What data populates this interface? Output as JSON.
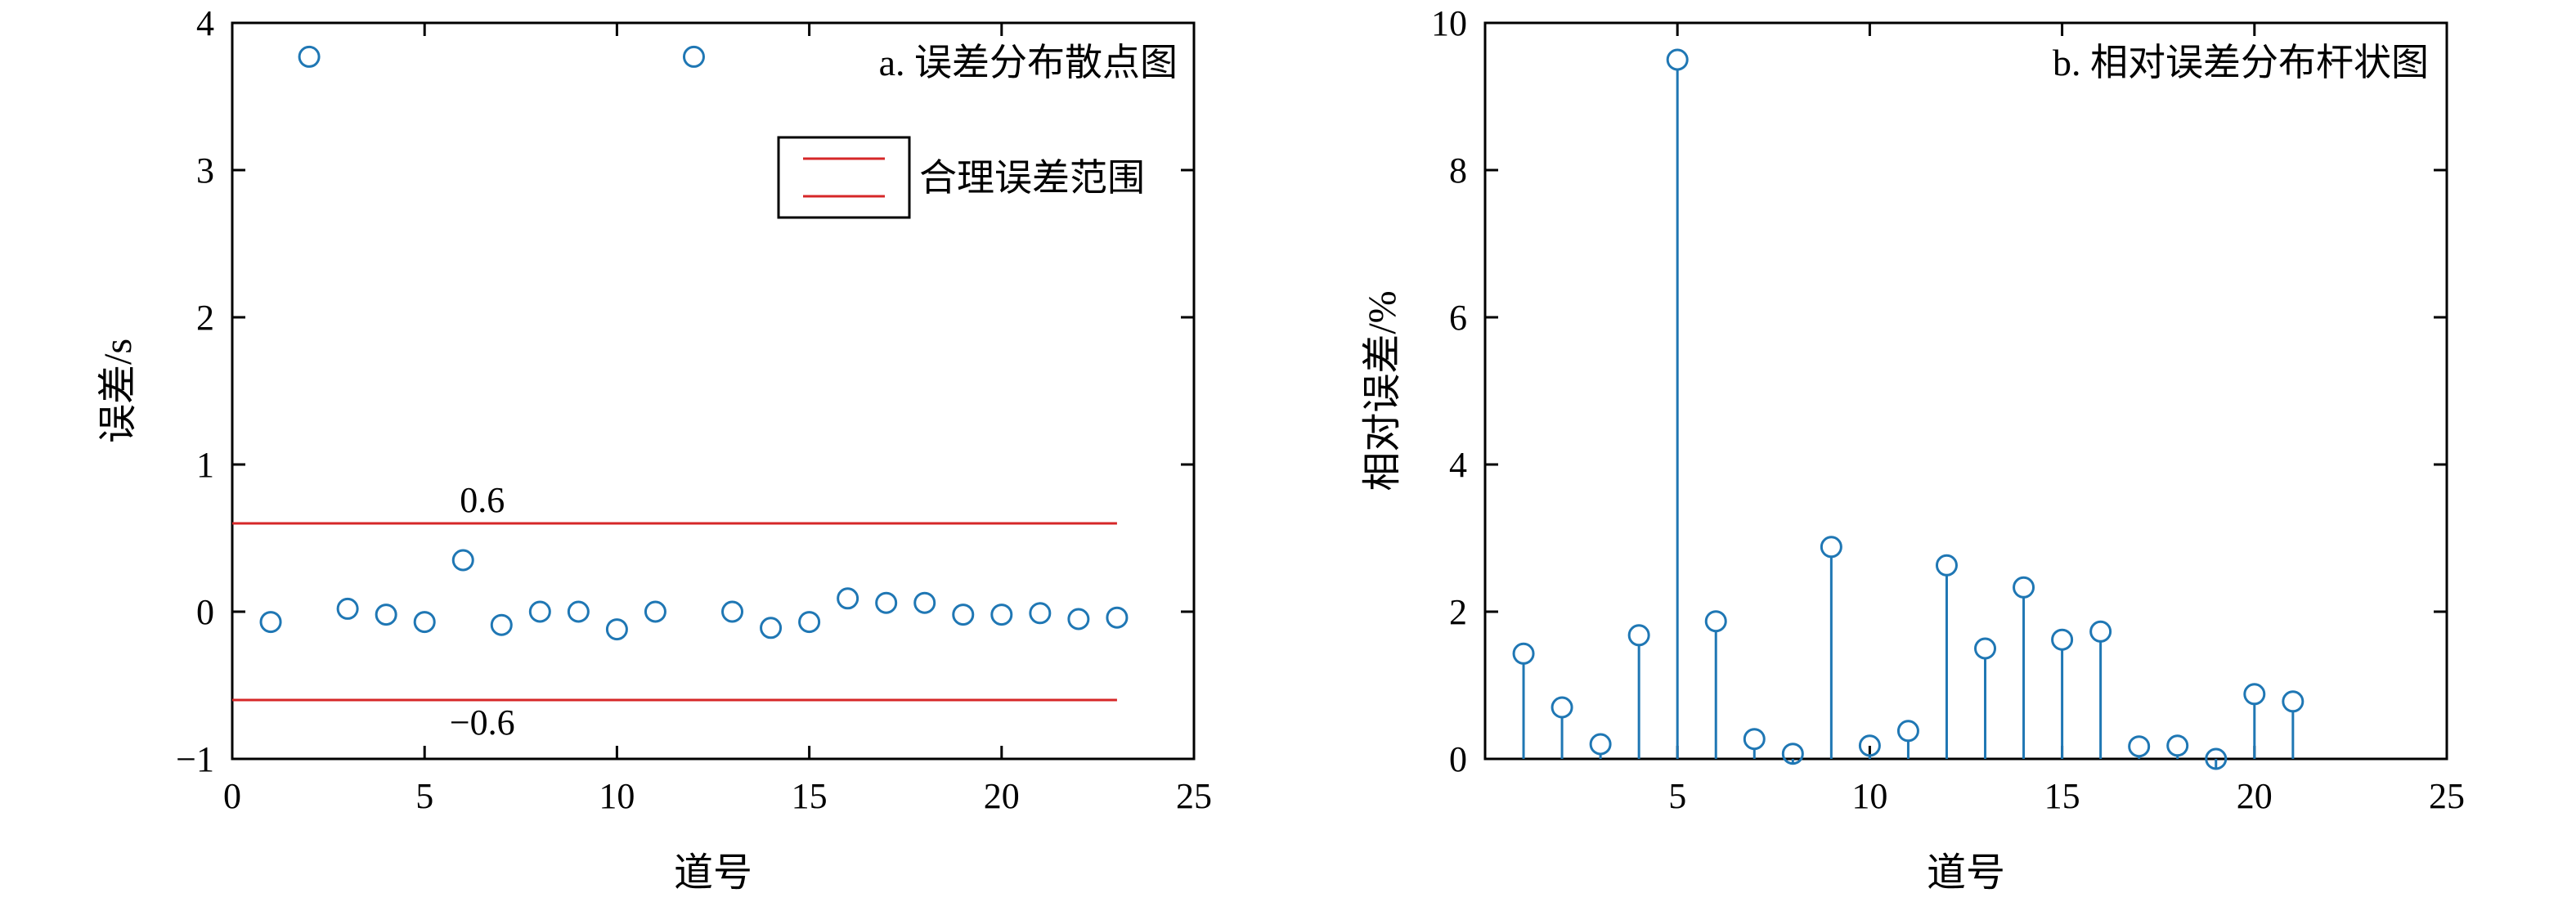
{
  "colors": {
    "marker": "#1f77b4",
    "ref_line": "#d62728",
    "axis": "#000000"
  },
  "chart_data": [
    {
      "type": "scatter",
      "title": "a. 误差分布散点图",
      "xlabel": "道号",
      "ylabel": "误差/s",
      "xlim": [
        0,
        25
      ],
      "ylim": [
        -1,
        4
      ],
      "xticks": [
        0,
        5,
        10,
        15,
        20,
        25
      ],
      "yticks": [
        -1,
        0,
        1,
        2,
        3,
        4
      ],
      "marker": "open-circle",
      "grid": false,
      "legend": {
        "placement": "top-right",
        "entries": [
          "合理误差范围"
        ]
      },
      "reference_lines": [
        {
          "y": 0.6,
          "label": "0.6",
          "x_start": 0,
          "x_end": 23
        },
        {
          "y": -0.6,
          "label": "−0.6",
          "x_start": 0,
          "x_end": 23
        }
      ],
      "x": [
        1,
        2,
        3,
        4,
        5,
        6,
        7,
        8,
        9,
        10,
        11,
        12,
        13,
        14,
        15,
        16,
        17,
        18,
        19,
        20,
        21,
        22,
        23
      ],
      "y": [
        -0.07,
        3.77,
        0.02,
        -0.02,
        -0.07,
        0.35,
        -0.09,
        0.0,
        0.0,
        -0.12,
        0.0,
        3.77,
        0.0,
        -0.11,
        -0.07,
        0.09,
        0.06,
        0.06,
        -0.02,
        -0.02,
        -0.01,
        -0.05,
        -0.04
      ]
    },
    {
      "type": "stem",
      "title": "b. 相对误差分布杆状图",
      "xlabel": "道号",
      "ylabel": "相对误差/%",
      "xlim": [
        0,
        25
      ],
      "ylim": [
        0,
        10
      ],
      "xticks": [
        5,
        10,
        15,
        20,
        25
      ],
      "yticks": [
        0,
        2,
        4,
        6,
        8,
        10
      ],
      "marker": "open-circle",
      "grid": false,
      "x": [
        1,
        2,
        3,
        4,
        5,
        6,
        7,
        8,
        9,
        10,
        11,
        12,
        13,
        14,
        15,
        16,
        17,
        18,
        19,
        20,
        21
      ],
      "y": [
        1.43,
        0.7,
        0.2,
        1.68,
        9.5,
        1.87,
        0.27,
        0.07,
        2.88,
        0.18,
        0.38,
        2.63,
        1.5,
        2.33,
        1.62,
        1.73,
        0.17,
        0.18,
        0.0,
        0.88,
        0.78
      ]
    }
  ]
}
